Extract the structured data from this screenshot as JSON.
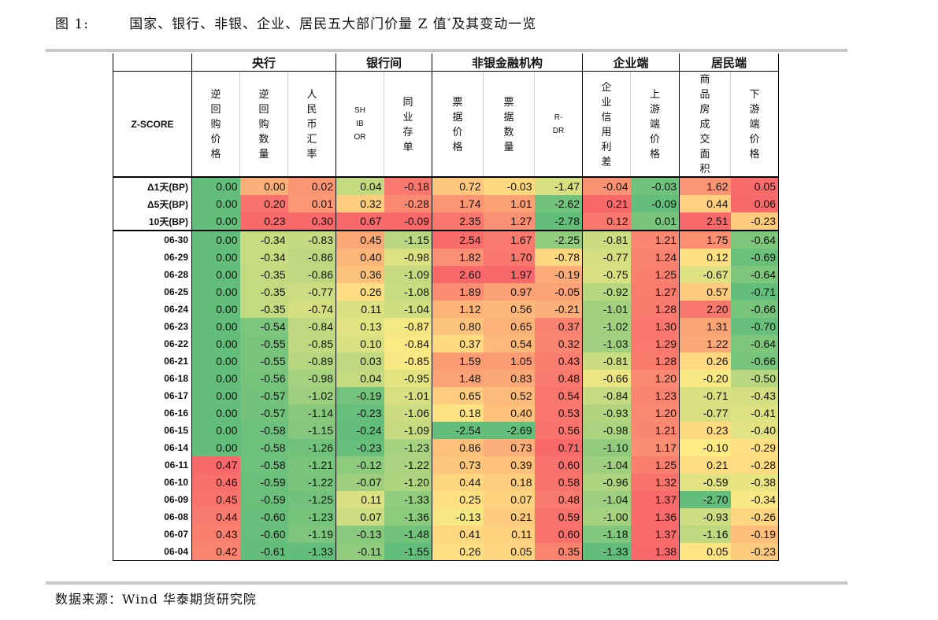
{
  "figure": {
    "label": "图 1:",
    "title_main": "国家、银行、非银、企业、居民五大部门价量 Z 值",
    "title_sup": "*",
    "title_tail": "及其变动一览"
  },
  "source_note": "数据来源：Wind 华泰期货研究院",
  "table": {
    "corner_label": "Z-SCORE",
    "groups": [
      {
        "name": "央行",
        "span": 3
      },
      {
        "name": "银行间",
        "span": 2
      },
      {
        "name": "非银金融机构",
        "span": 3
      },
      {
        "name": "企业端",
        "span": 2
      },
      {
        "name": "居民端",
        "span": 2
      }
    ],
    "columns": [
      "逆回购价格",
      "逆回购数量",
      "人民币汇率",
      "SHIBOR",
      "同业存单",
      "票据价格",
      "票据数量",
      "R-DR",
      "企业信用利差",
      "上游端价格",
      "商品房成交面积",
      "下游端价格"
    ],
    "rows": [
      {
        "label": "Δ1天(BP)",
        "values": [
          "0.00",
          "0.00",
          "0.02",
          "0.04",
          "-0.18",
          "0.72",
          "-0.03",
          "-1.47",
          "-0.04",
          "-0.03",
          "1.62",
          "0.05"
        ]
      },
      {
        "label": "Δ5天(BP)",
        "values": [
          "0.00",
          "0.20",
          "0.01",
          "0.32",
          "-0.28",
          "1.74",
          "1.01",
          "-2.62",
          "0.21",
          "-0.09",
          "0.44",
          "0.06"
        ]
      },
      {
        "label": "10天(BP)",
        "values": [
          "0.00",
          "0.23",
          "0.30",
          "0.67",
          "-0.09",
          "2.35",
          "1.27",
          "-2.78",
          "0.12",
          "0.01",
          "2.51",
          "-0.23"
        ]
      },
      {
        "label": "06-30",
        "values": [
          "0.00",
          "-0.34",
          "-0.83",
          "0.45",
          "-1.15",
          "2.54",
          "1.67",
          "-2.25",
          "-0.81",
          "1.21",
          "1.75",
          "-0.64"
        ]
      },
      {
        "label": "06-29",
        "values": [
          "0.00",
          "-0.34",
          "-0.86",
          "0.40",
          "-0.98",
          "1.82",
          "1.70",
          "-0.78",
          "-0.77",
          "1.24",
          "0.12",
          "-0.69"
        ]
      },
      {
        "label": "06-28",
        "values": [
          "0.00",
          "-0.35",
          "-0.86",
          "0.36",
          "-1.09",
          "2.60",
          "1.97",
          "-0.19",
          "-0.75",
          "1.25",
          "-0.67",
          "-0.64"
        ]
      },
      {
        "label": "06-25",
        "values": [
          "0.00",
          "-0.35",
          "-0.77",
          "0.26",
          "-1.08",
          "1.89",
          "0.97",
          "-0.05",
          "-0.92",
          "1.27",
          "0.57",
          "-0.71"
        ]
      },
      {
        "label": "06-24",
        "values": [
          "0.00",
          "-0.35",
          "-0.74",
          "0.11",
          "-1.04",
          "1.12",
          "0.56",
          "-0.21",
          "-1.01",
          "1.28",
          "2.20",
          "-0.66"
        ]
      },
      {
        "label": "06-23",
        "values": [
          "0.00",
          "-0.54",
          "-0.84",
          "0.13",
          "-0.87",
          "0.80",
          "0.65",
          "0.37",
          "-1.02",
          "1.30",
          "1.31",
          "-0.70"
        ]
      },
      {
        "label": "06-22",
        "values": [
          "0.00",
          "-0.55",
          "-0.85",
          "0.10",
          "-0.84",
          "0.37",
          "0.54",
          "0.32",
          "-1.03",
          "1.29",
          "1.22",
          "-0.64"
        ]
      },
      {
        "label": "06-21",
        "values": [
          "0.00",
          "-0.55",
          "-0.89",
          "0.03",
          "-0.85",
          "1.59",
          "1.05",
          "0.43",
          "-0.81",
          "1.28",
          "0.26",
          "-0.66"
        ]
      },
      {
        "label": "06-18",
        "values": [
          "0.00",
          "-0.56",
          "-0.98",
          "0.04",
          "-0.95",
          "1.48",
          "0.83",
          "0.48",
          "-0.66",
          "1.20",
          "-0.20",
          "-0.50"
        ]
      },
      {
        "label": "06-17",
        "values": [
          "0.00",
          "-0.57",
          "-1.02",
          "-0.19",
          "-1.01",
          "0.65",
          "0.52",
          "0.54",
          "-0.84",
          "1.23",
          "-0.71",
          "-0.43"
        ]
      },
      {
        "label": "06-16",
        "values": [
          "0.00",
          "-0.57",
          "-1.14",
          "-0.23",
          "-1.06",
          "0.18",
          "0.40",
          "0.53",
          "-0.93",
          "1.20",
          "-0.77",
          "-0.41"
        ]
      },
      {
        "label": "06-15",
        "values": [
          "0.00",
          "-0.58",
          "-1.15",
          "-0.24",
          "-1.09",
          "-2.54",
          "-2.69",
          "0.56",
          "-0.98",
          "1.21",
          "0.23",
          "-0.40"
        ]
      },
      {
        "label": "06-14",
        "values": [
          "0.00",
          "-0.58",
          "-1.26",
          "-0.23",
          "-1.23",
          "0.86",
          "0.73",
          "0.71",
          "-1.10",
          "1.17",
          "-0.10",
          "-0.29"
        ]
      },
      {
        "label": "06-11",
        "values": [
          "0.47",
          "-0.58",
          "-1.21",
          "-0.12",
          "-1.22",
          "0.73",
          "0.39",
          "0.60",
          "-1.04",
          "1.25",
          "0.21",
          "-0.28"
        ]
      },
      {
        "label": "06-10",
        "values": [
          "0.46",
          "-0.59",
          "-1.22",
          "-0.07",
          "-1.20",
          "0.44",
          "0.18",
          "0.58",
          "-0.96",
          "1.32",
          "-0.59",
          "-0.38"
        ]
      },
      {
        "label": "06-09",
        "values": [
          "0.45",
          "-0.59",
          "-1.25",
          "0.11",
          "-1.33",
          "0.25",
          "0.07",
          "0.48",
          "-1.04",
          "1.37",
          "-2.70",
          "-0.34"
        ]
      },
      {
        "label": "06-08",
        "values": [
          "0.44",
          "-0.60",
          "-1.23",
          "0.07",
          "-1.36",
          "-0.13",
          "0.21",
          "0.59",
          "-1.00",
          "1.36",
          "-0.93",
          "-0.26"
        ]
      },
      {
        "label": "06-07",
        "values": [
          "0.43",
          "-0.60",
          "-1.19",
          "-0.13",
          "-1.48",
          "0.41",
          "0.11",
          "0.60",
          "-1.18",
          "1.37",
          "-1.16",
          "-0.19"
        ]
      },
      {
        "label": "06-04",
        "values": [
          "0.42",
          "-0.61",
          "-1.33",
          "-0.11",
          "-1.55",
          "0.26",
          "0.05",
          "0.35",
          "-1.33",
          "1.38",
          "0.05",
          "-0.23"
        ]
      }
    ],
    "color_scale": {
      "low": "#63be7b",
      "mid": "#ffeb84",
      "high": "#f8696b"
    }
  }
}
